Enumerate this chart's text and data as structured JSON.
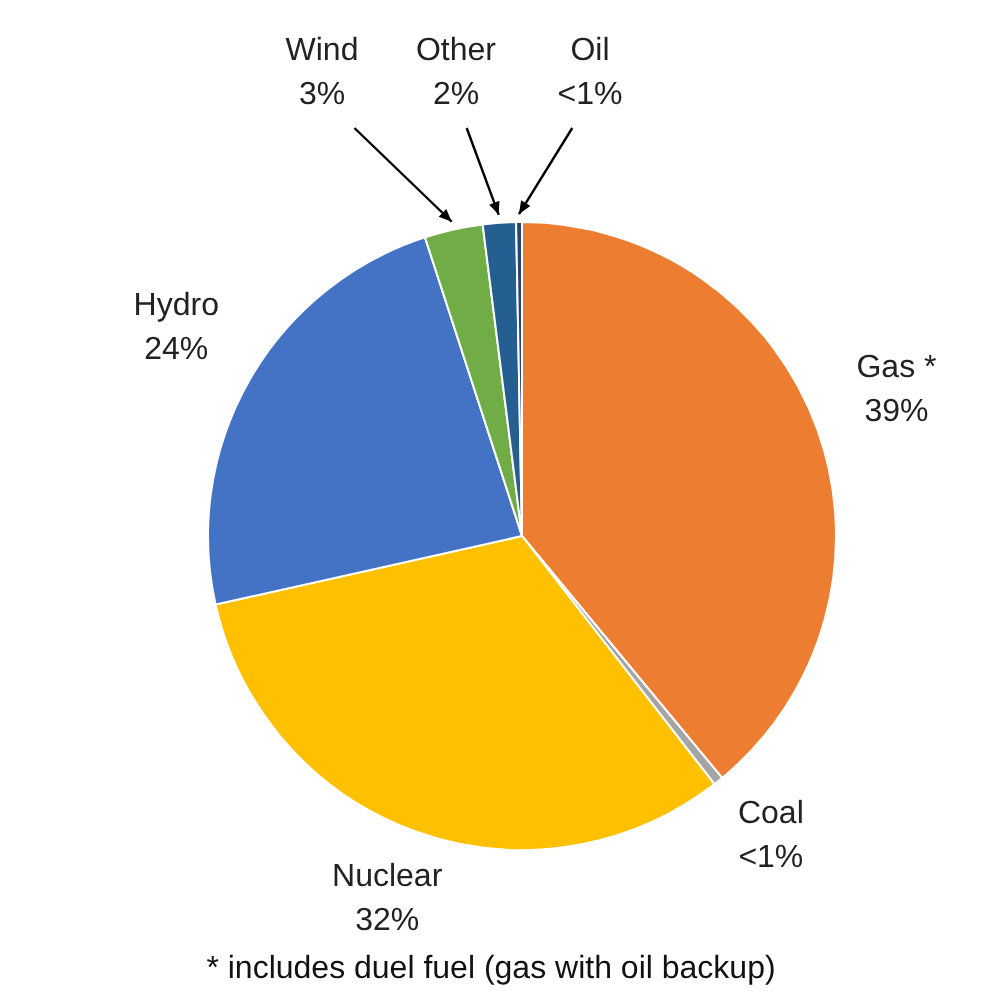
{
  "chart_data": {
    "type": "pie",
    "categories": [
      "Gas *",
      "Coal",
      "Nuclear",
      "Hydro",
      "Wind",
      "Other",
      "Oil"
    ],
    "values": [
      39,
      0.5,
      32,
      23.5,
      3,
      1.7,
      0.3
    ],
    "value_labels": [
      "39%",
      "<1%",
      "32%",
      "24%",
      "3%",
      "2%",
      "<1%"
    ],
    "colors": [
      "#ed7d31",
      "#a5a5a5",
      "#ffc000",
      "#4472c4",
      "#70ad47",
      "#255e91",
      "#264478"
    ],
    "annotations": [
      "* includes duel fuel (gas with oil backup)"
    ]
  }
}
